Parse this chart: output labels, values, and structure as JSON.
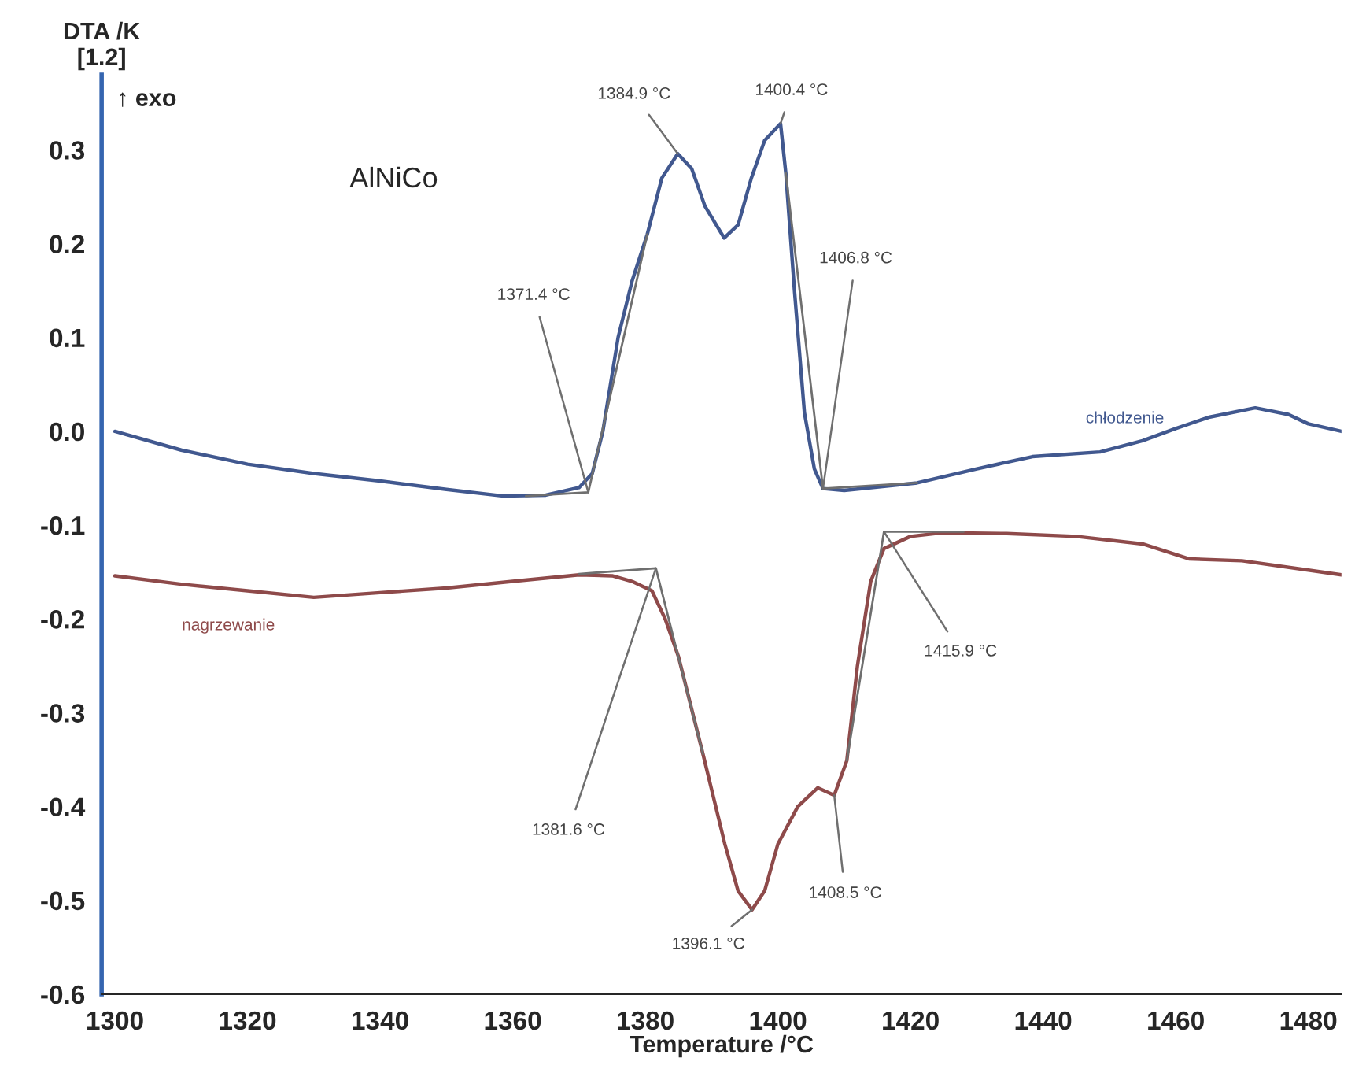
{
  "chart_data": {
    "type": "line",
    "xlabel": "Temperature /°C",
    "ylabel": "DTA /K\n[1.2]",
    "xlim": [
      1298,
      1485
    ],
    "ylim": [
      -0.6,
      0.38
    ],
    "xticks": [
      1300,
      1320,
      1340,
      1360,
      1380,
      1400,
      1420,
      1440,
      1460,
      1480
    ],
    "yticks": [
      -0.6,
      -0.5,
      -0.4,
      -0.3,
      -0.2,
      -0.1,
      {
        "value": 0,
        "label": "0.0"
      },
      0.1,
      0.2,
      0.3
    ],
    "grid": false,
    "marker": "none",
    "line_style": "solid",
    "series": [
      {
        "name": "chłodzenie",
        "color": "#41588f",
        "x": [
          1300,
          1310,
          1320,
          1330,
          1340,
          1350,
          1358.6,
          1365,
          1370,
          1372,
          1373.6,
          1375.9,
          1378,
          1380.3,
          1382.5,
          1384.9,
          1387,
          1389,
          1391.9,
          1394,
          1396,
          1398,
          1400.4,
          1401.2,
          1402.5,
          1404,
          1405.5,
          1406.8,
          1410,
          1421,
          1430,
          1438.4,
          1448.6,
          1455,
          1460,
          1465,
          1472,
          1477,
          1480,
          1485
        ],
        "values": [
          0.0,
          -0.02,
          -0.035,
          -0.045,
          -0.053,
          -0.062,
          -0.069,
          -0.068,
          -0.06,
          -0.045,
          0.0,
          0.1,
          0.16,
          0.21,
          0.27,
          0.296,
          0.28,
          0.24,
          0.206,
          0.22,
          0.27,
          0.31,
          0.328,
          0.275,
          0.15,
          0.02,
          -0.04,
          -0.061,
          -0.063,
          -0.055,
          -0.04,
          -0.027,
          -0.022,
          -0.01,
          0.003,
          0.015,
          0.025,
          0.018,
          0.008,
          0.0
        ]
      },
      {
        "name": "nagrzewanie",
        "color": "#8e4a4a",
        "x": [
          1300,
          1310,
          1320,
          1330,
          1340,
          1350,
          1360,
          1370,
          1375,
          1378,
          1381,
          1383,
          1385,
          1388.7,
          1392,
          1394,
          1396.1,
          1398,
          1400,
          1403,
          1406,
          1408.5,
          1410.4,
          1412,
          1414,
          1416,
          1420,
          1425,
          1434.5,
          1445,
          1455,
          1462,
          1470,
          1480,
          1485
        ],
        "values": [
          -0.154,
          -0.163,
          -0.17,
          -0.177,
          -0.172,
          -0.167,
          -0.16,
          -0.153,
          -0.154,
          -0.16,
          -0.17,
          -0.2,
          -0.24,
          -0.344,
          -0.44,
          -0.49,
          -0.51,
          -0.49,
          -0.44,
          -0.4,
          -0.38,
          -0.388,
          -0.351,
          -0.25,
          -0.16,
          -0.125,
          -0.112,
          -0.108,
          -0.109,
          -0.112,
          -0.12,
          -0.136,
          -0.138,
          -0.148,
          -0.153
        ]
      },
      {
        "color": "#6f6f6f",
        "x": [
          1362,
          1371.4,
          1380.3
        ],
        "values": [
          -0.069,
          -0.065,
          0.21
        ]
      },
      {
        "color": "#6f6f6f",
        "x": [
          1401.2,
          1406.8,
          1421
        ],
        "values": [
          0.275,
          -0.061,
          -0.055
        ]
      },
      {
        "color": "#6f6f6f",
        "x": [
          1370,
          1381.6,
          1388.7
        ],
        "values": [
          -0.152,
          -0.146,
          -0.344
        ]
      },
      {
        "color": "#6f6f6f",
        "x": [
          1410.4,
          1416,
          1428
        ],
        "values": [
          -0.351,
          -0.107,
          -0.107
        ]
      }
    ],
    "annotations": [
      "AlNiCo",
      "↑ exo",
      {
        "text": "1371.4 °C",
        "x": 1371.4,
        "y": -0.065
      },
      {
        "text": "1384.9 °C",
        "x": 1384.9,
        "y": 0.296
      },
      {
        "text": "1400.4 °C",
        "x": 1400.4,
        "y": 0.328
      },
      {
        "text": "1406.8 °C",
        "x": 1406.8,
        "y": -0.061
      },
      {
        "text": "1381.6 °C",
        "x": 1381.6,
        "y": -0.146
      },
      {
        "text": "1396.1 °C",
        "x": 1396.1,
        "y": -0.51
      },
      {
        "text": "1408.5 °C",
        "x": 1408.5,
        "y": -0.388
      },
      {
        "text": "1415.9 °C",
        "x": 1416,
        "y": -0.107
      }
    ]
  }
}
